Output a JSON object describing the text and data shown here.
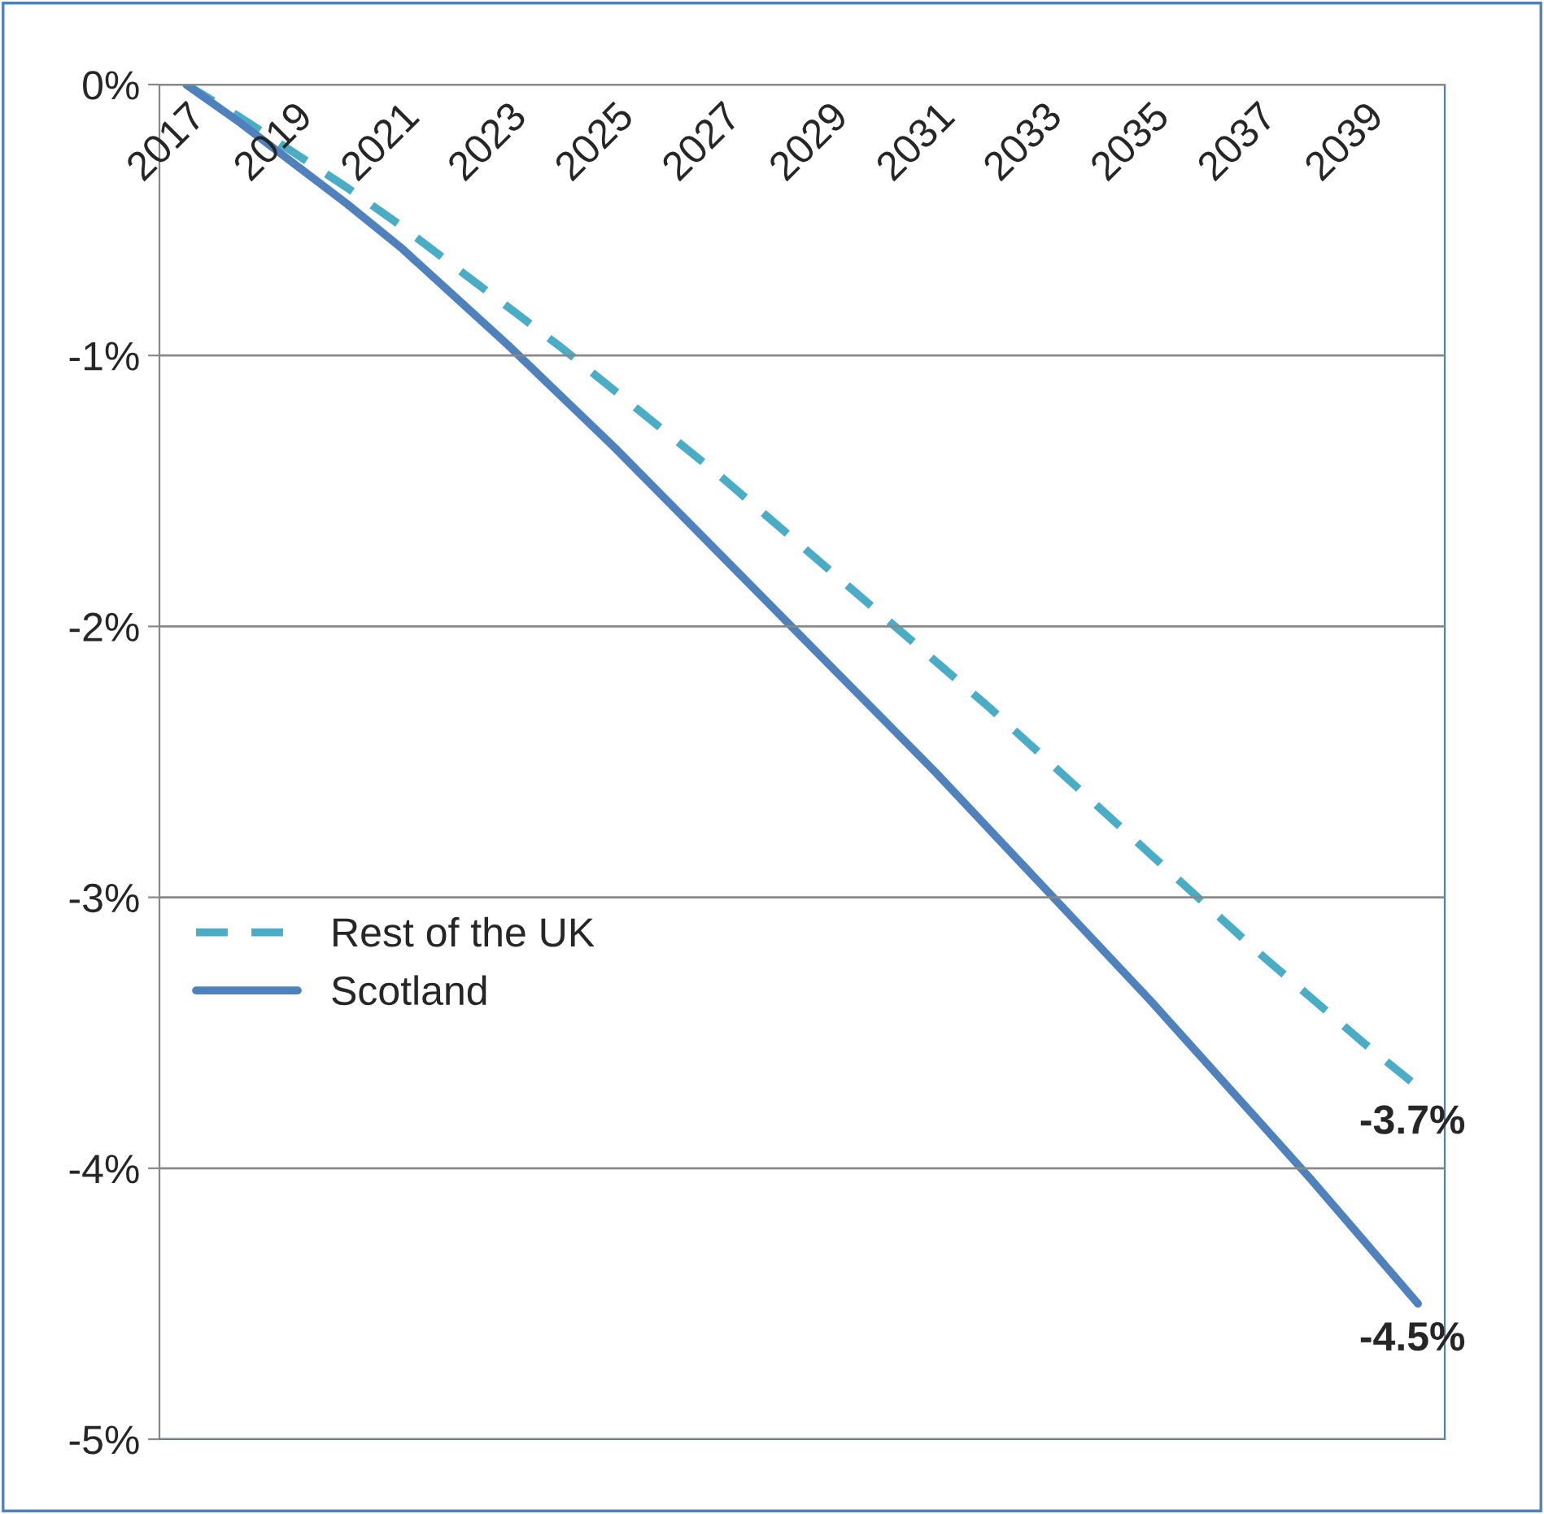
{
  "chart_data": {
    "type": "line",
    "categories": [
      "2017",
      null,
      "2019",
      null,
      "2021",
      null,
      "2023",
      null,
      "2025",
      null,
      "2027",
      null,
      "2029",
      null,
      "2031",
      null,
      "2033",
      null,
      "2035",
      null,
      "2037",
      null,
      "2039",
      null
    ],
    "series": [
      {
        "name": "Rest of the UK",
        "color": "#4bacc6",
        "line_style": "dashed",
        "values": [
          0,
          -0.12,
          -0.25,
          -0.38,
          -0.52,
          -0.67,
          -0.82,
          -0.97,
          -1.13,
          -1.29,
          -1.45,
          -1.62,
          -1.79,
          -1.96,
          -2.13,
          -2.3,
          -2.48,
          -2.66,
          -2.84,
          -3.02,
          -3.2,
          -3.37,
          -3.54,
          -3.7
        ],
        "value_labels": [
          null,
          null,
          null,
          null,
          null,
          null,
          null,
          null,
          null,
          null,
          null,
          null,
          null,
          null,
          null,
          null,
          null,
          null,
          null,
          null,
          null,
          null,
          null,
          "-3.7%"
        ]
      },
      {
        "name": "Scotland",
        "color": "#4f81bd",
        "line_style": "solid",
        "values": [
          0,
          -0.14,
          -0.29,
          -0.44,
          -0.6,
          -0.78,
          -0.96,
          -1.15,
          -1.34,
          -1.54,
          -1.74,
          -1.94,
          -2.14,
          -2.34,
          -2.54,
          -2.75,
          -2.96,
          -3.17,
          -3.38,
          -3.6,
          -3.82,
          -4.04,
          -4.27,
          -4.5
        ],
        "value_labels": [
          null,
          null,
          null,
          null,
          null,
          null,
          null,
          null,
          null,
          null,
          null,
          null,
          null,
          null,
          null,
          null,
          null,
          null,
          null,
          null,
          null,
          null,
          null,
          "-4.5%"
        ]
      }
    ],
    "ylim": [
      -5,
      0
    ],
    "yticks": [
      {
        "value": -5,
        "label": "-5%"
      },
      {
        "value": -4,
        "label": "-4%"
      },
      {
        "value": -3,
        "label": "-3%"
      },
      {
        "value": -2,
        "label": "-2%"
      },
      {
        "value": -1,
        "label": "-1%"
      },
      {
        "value": 0,
        "label": "0%"
      }
    ],
    "grid": "y",
    "legend": "center left",
    "marker": "none"
  }
}
